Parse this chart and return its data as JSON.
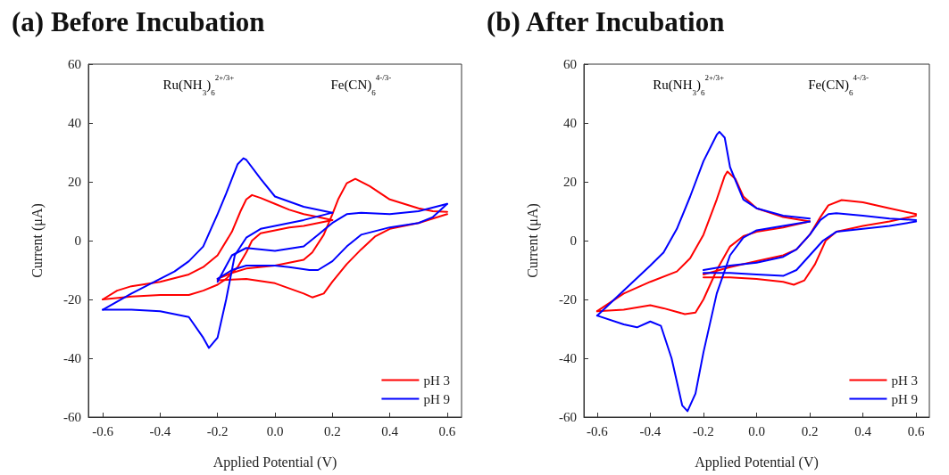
{
  "chart_data": [
    {
      "type": "line",
      "title": "(a) Before Incubation",
      "xlabel": "Applied Potential (V)",
      "ylabel": "Current (μA)",
      "annotations": [
        "Ru(NH$_{3}$)$_{6}$$^{2+/3+}$",
        "Fe(CN)$_{6}$$^{4-/3-}$"
      ],
      "xlim": [
        -0.65,
        0.65
      ],
      "xticks": [
        -0.6,
        -0.4,
        -0.2,
        {
          "value": 0,
          "label": "0.0"
        },
        0.2,
        0.4,
        0.6
      ],
      "ylim": [
        -60,
        60
      ],
      "yticks": [
        -60,
        -40,
        -20,
        0,
        20,
        40,
        60
      ],
      "grid": false,
      "legend": "bottom right",
      "marker": "none",
      "line_style": "solid",
      "series": [
        {
          "name": "pH 3",
          "color": "#ff0000",
          "x": [
            -0.6,
            -0.55,
            -0.5,
            -0.4,
            -0.3,
            -0.25,
            -0.2,
            -0.15,
            -0.12,
            -0.1,
            -0.08,
            -0.05,
            0,
            0.05,
            0.1,
            0.15,
            0.2
          ],
          "values": [
            -20,
            -17,
            -15.5,
            -14,
            -11.5,
            -9,
            -5,
            3,
            10,
            14,
            15.5,
            14.5,
            12.5,
            10.5,
            9,
            8,
            7
          ]
        },
        {
          "color": "#ff0000",
          "x": [
            0.2,
            0.15,
            0.1,
            0.05,
            0,
            -0.05,
            -0.08,
            -0.1,
            -0.13,
            -0.17,
            -0.2,
            -0.25,
            -0.3,
            -0.4,
            -0.5,
            -0.6
          ],
          "values": [
            7,
            6,
            5,
            4.5,
            3.5,
            2.5,
            0,
            -4,
            -9,
            -13,
            -15,
            -17,
            -18.5,
            -18.5,
            -19,
            -20
          ]
        },
        {
          "color": "#ff0000",
          "x": [
            -0.2,
            -0.1,
            0,
            0.1,
            0.13,
            0.17,
            0.2,
            0.25,
            0.3,
            0.35,
            0.4,
            0.5,
            0.6
          ],
          "values": [
            -13.5,
            -13,
            -14.5,
            -18,
            -19.3,
            -18,
            -14,
            -8,
            -3,
            1.5,
            4,
            6,
            9
          ]
        },
        {
          "color": "#ff0000",
          "x": [
            0.6,
            0.55,
            0.5,
            0.4,
            0.33,
            0.28,
            0.25,
            0.22,
            0.2,
            0.17,
            0.13,
            0.1,
            0,
            -0.1,
            -0.15,
            -0.2
          ],
          "values": [
            9.8,
            10,
            11,
            14,
            18.5,
            21,
            19.5,
            14,
            9,
            2,
            -4,
            -6.5,
            -8.5,
            -9.5,
            -11,
            -13
          ]
        },
        {
          "name": "pH 9",
          "color": "#0000ff",
          "x": [
            -0.6,
            -0.5,
            -0.4,
            -0.35,
            -0.3,
            -0.25,
            -0.2,
            -0.17,
            -0.13,
            -0.11,
            -0.1,
            -0.05,
            0,
            0.1,
            0.2
          ],
          "values": [
            -23.5,
            -18,
            -13,
            -10.5,
            -7,
            -2,
            9,
            16,
            26,
            28,
            27.5,
            21,
            15,
            11.5,
            9.5
          ]
        },
        {
          "color": "#0000ff",
          "x": [
            0.2,
            0.1,
            0,
            -0.05,
            -0.1,
            -0.14,
            -0.17,
            -0.2,
            -0.23,
            -0.25,
            -0.3,
            -0.4,
            -0.5,
            -0.6
          ],
          "values": [
            9.5,
            7,
            5,
            4,
            1,
            -5,
            -20,
            -33,
            -36.5,
            -33,
            -26,
            -24,
            -23.5,
            -23.5
          ]
        },
        {
          "color": "#0000ff",
          "x": [
            -0.2,
            -0.15,
            -0.1,
            0,
            0.1,
            0.15,
            0.2,
            0.25,
            0.3,
            0.4,
            0.5,
            0.6
          ],
          "values": [
            -14,
            -5,
            -2.5,
            -3.5,
            -2,
            2,
            6,
            9,
            9.5,
            9,
            10,
            12.5
          ]
        },
        {
          "color": "#0000ff",
          "x": [
            0.6,
            0.55,
            0.5,
            0.4,
            0.3,
            0.25,
            0.2,
            0.15,
            0.12,
            0.05,
            0,
            -0.1,
            -0.15,
            -0.2
          ],
          "values": [
            12.5,
            8,
            6,
            4.5,
            2,
            -2,
            -7,
            -10,
            -10,
            -9,
            -8.5,
            -8.5,
            -10,
            -13
          ]
        }
      ]
    },
    {
      "type": "line",
      "title": "(b) After Incubation",
      "xlabel": "Applied Potential (V)",
      "ylabel": "Current (μA)",
      "annotations": [
        "Ru(NH$_{3}$)$_{6}$$^{2+/3+}$",
        "Fe(CN)$_{6}$$^{4-/3-}$"
      ],
      "xlim": [
        -0.65,
        0.65
      ],
      "xticks": [
        -0.6,
        -0.4,
        -0.2,
        {
          "value": 0,
          "label": "0.0"
        },
        0.2,
        0.4,
        0.6
      ],
      "ylim": [
        -60,
        60
      ],
      "yticks": [
        -60,
        -40,
        -20,
        0,
        20,
        40,
        60
      ],
      "grid": false,
      "legend": "bottom right",
      "marker": "none",
      "line_style": "solid",
      "series": [
        {
          "name": "pH 3",
          "color": "#ff0000",
          "x": [
            -0.6,
            -0.5,
            -0.4,
            -0.3,
            -0.25,
            -0.2,
            -0.15,
            -0.12,
            -0.11,
            -0.08,
            -0.05,
            0,
            0.1,
            0.2
          ],
          "values": [
            -24,
            -18,
            -14,
            -10.5,
            -6,
            2,
            14,
            22,
            23.5,
            21,
            15,
            11,
            8,
            6.5
          ]
        },
        {
          "color": "#ff0000",
          "x": [
            0.2,
            0.1,
            0,
            -0.05,
            -0.1,
            -0.15,
            -0.2,
            -0.23,
            -0.27,
            -0.35,
            -0.4,
            -0.5,
            -0.6
          ],
          "values": [
            6.5,
            4.5,
            3,
            1.5,
            -2,
            -10,
            -20,
            -24.5,
            -25,
            -23,
            -22,
            -23.5,
            -24
          ]
        },
        {
          "color": "#ff0000",
          "x": [
            -0.2,
            -0.1,
            0,
            0.1,
            0.14,
            0.18,
            0.22,
            0.26,
            0.3,
            0.4,
            0.5,
            0.6
          ],
          "values": [
            -12.5,
            -12.5,
            -13,
            -14,
            -15,
            -13.5,
            -8,
            0,
            3,
            5,
            6.5,
            8.5
          ]
        },
        {
          "color": "#ff0000",
          "x": [
            0.6,
            0.5,
            0.4,
            0.32,
            0.27,
            0.24,
            0.2,
            0.15,
            0.1,
            0,
            -0.1,
            -0.2
          ],
          "values": [
            9,
            11,
            13,
            13.8,
            12,
            8,
            2,
            -3,
            -5,
            -7,
            -9,
            -11.5
          ]
        },
        {
          "name": "pH 9",
          "color": "#0000ff",
          "x": [
            -0.6,
            -0.5,
            -0.4,
            -0.35,
            -0.3,
            -0.25,
            -0.2,
            -0.15,
            -0.14,
            -0.12,
            -0.1,
            -0.05,
            0,
            0.1,
            0.2
          ],
          "values": [
            -25.5,
            -17,
            -8.5,
            -4,
            4,
            15,
            27,
            36,
            37,
            35,
            25,
            14,
            11,
            8.5,
            7.5
          ]
        },
        {
          "color": "#0000ff",
          "x": [
            0.2,
            0.1,
            0,
            -0.05,
            -0.1,
            -0.15,
            -0.2,
            -0.23,
            -0.26,
            -0.28,
            -0.32,
            -0.36,
            -0.4,
            -0.45,
            -0.5,
            -0.6
          ],
          "values": [
            6.5,
            5,
            3.5,
            1,
            -5,
            -18,
            -38,
            -52,
            -58,
            -56,
            -40,
            -29,
            -27.5,
            -29.5,
            -28.5,
            -25.5
          ]
        },
        {
          "color": "#0000ff",
          "x": [
            -0.2,
            -0.1,
            0,
            0.1,
            0.15,
            0.2,
            0.25,
            0.3,
            0.4,
            0.5,
            0.6
          ],
          "values": [
            -11,
            -11,
            -11.5,
            -12,
            -10,
            -5,
            0,
            3,
            4,
            5,
            6.5
          ]
        },
        {
          "color": "#0000ff",
          "x": [
            0.6,
            0.5,
            0.4,
            0.3,
            0.27,
            0.24,
            0.2,
            0.15,
            0.1,
            0,
            -0.1,
            -0.2
          ],
          "values": [
            7,
            7.5,
            8.5,
            9.3,
            9,
            7,
            2,
            -3,
            -5.5,
            -7.5,
            -8.5,
            -10
          ]
        }
      ]
    }
  ]
}
